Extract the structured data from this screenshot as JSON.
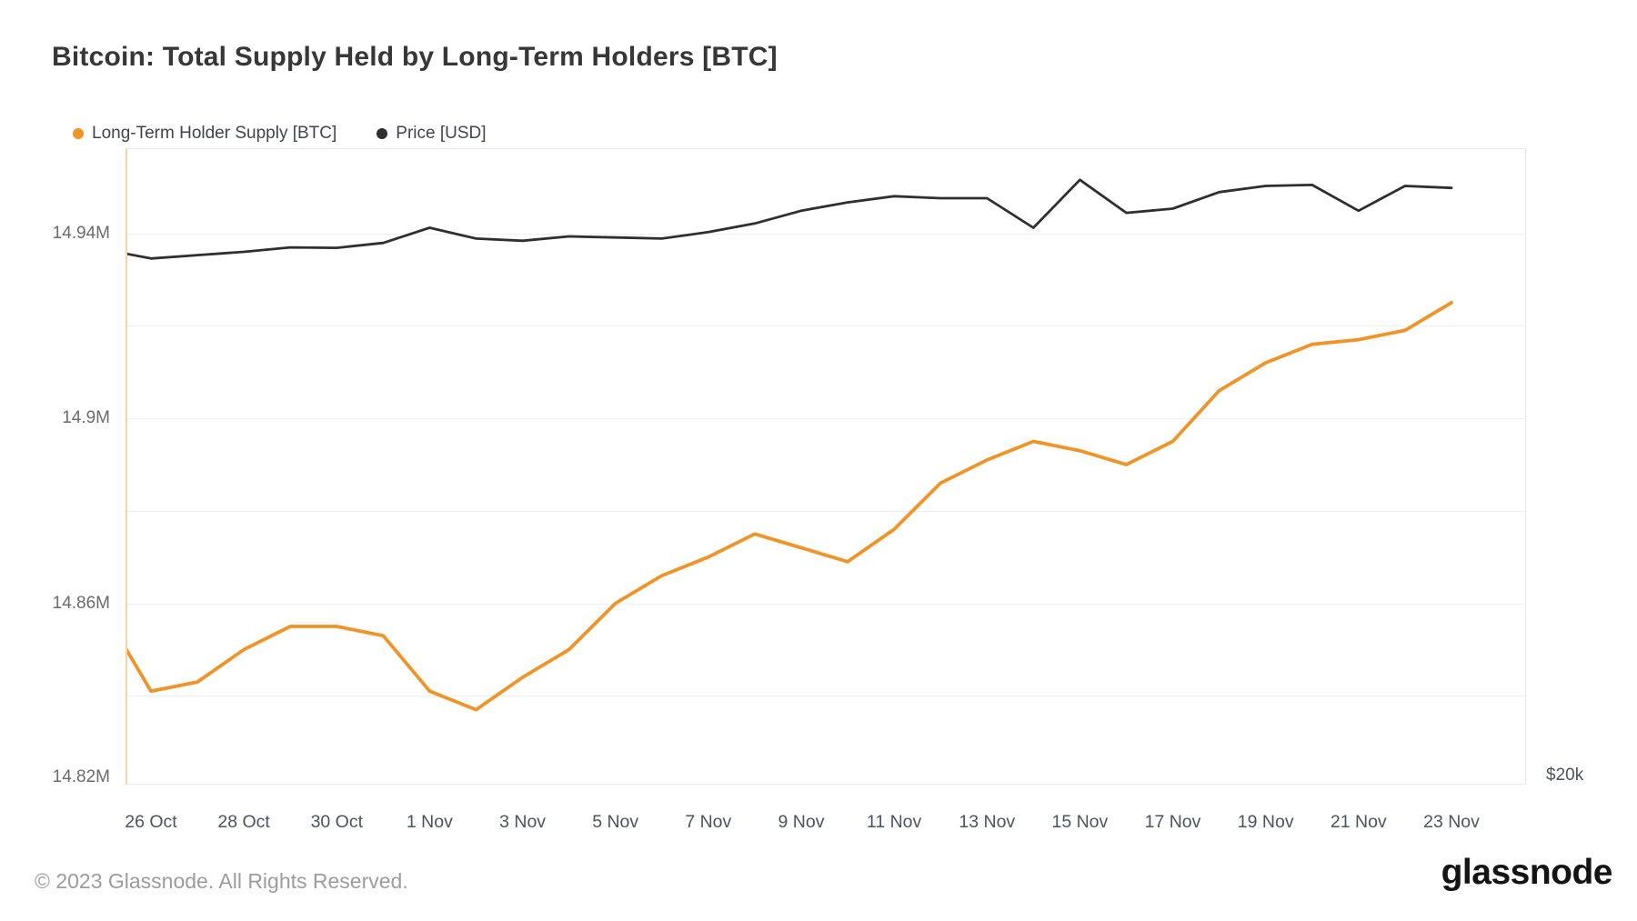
{
  "header": {
    "title": "Bitcoin: Total Supply Held by Long-Term Holders [BTC]"
  },
  "legend": {
    "items": [
      {
        "label": "Long-Term Holder Supply [BTC]",
        "color": "#f09428"
      },
      {
        "label": "Price [USD]",
        "color": "#2f2f2f"
      }
    ]
  },
  "chart_data": {
    "type": "line",
    "title": "Bitcoin: Total Supply Held by Long-Term Holders [BTC]",
    "grid": "horizontal",
    "x": [
      "25 Oct",
      "26 Oct",
      "27 Oct",
      "28 Oct",
      "29 Oct",
      "30 Oct",
      "31 Oct",
      "1 Nov",
      "2 Nov",
      "3 Nov",
      "4 Nov",
      "5 Nov",
      "6 Nov",
      "7 Nov",
      "8 Nov",
      "9 Nov",
      "10 Nov",
      "11 Nov",
      "12 Nov",
      "13 Nov",
      "14 Nov",
      "15 Nov",
      "16 Nov",
      "17 Nov",
      "18 Nov",
      "19 Nov",
      "20 Nov",
      "21 Nov",
      "22 Nov",
      "23 Nov"
    ],
    "series": [
      {
        "name": "Long-Term Holder Supply [BTC]",
        "axis": "left",
        "color": "#f09428",
        "unit": "M BTC",
        "values": [
          14.858,
          14.841,
          14.843,
          14.85,
          14.855,
          14.855,
          14.853,
          14.841,
          14.837,
          14.844,
          14.85,
          14.86,
          14.866,
          14.87,
          14.875,
          14.872,
          14.869,
          14.876,
          14.886,
          14.891,
          14.895,
          14.893,
          14.89,
          14.895,
          14.906,
          14.912,
          14.916,
          14.917,
          14.919,
          14.925
        ]
      },
      {
        "name": "Price [USD]",
        "axis": "right",
        "color": "#2f2f2f",
        "unit": "USD",
        "values": [
          34600,
          34200,
          34350,
          34500,
          34700,
          34680,
          34900,
          35600,
          35100,
          35000,
          35200,
          35150,
          35100,
          35400,
          35800,
          36400,
          36800,
          37100,
          37000,
          37000,
          35600,
          37900,
          36300,
          36500,
          37300,
          37600,
          37650,
          36400,
          37600,
          37500
        ]
      }
    ],
    "left_axis": {
      "ticks": [
        {
          "label": "14.94M",
          "value": 14.94
        },
        {
          "label": "14.9M",
          "value": 14.9
        },
        {
          "label": "14.86M",
          "value": 14.86
        },
        {
          "label": "14.82M",
          "value": 14.82
        }
      ],
      "grid_values": [
        14.94,
        14.92,
        14.9,
        14.88,
        14.86,
        14.84
      ],
      "ylim": [
        14.8208,
        14.9584
      ]
    },
    "right_axis": {
      "ticks": [
        {
          "label": "$20k",
          "value": 20000
        }
      ],
      "scale": "log",
      "ylim": [
        17200,
        39500
      ]
    },
    "x_axis": {
      "ticks": [
        "26 Oct",
        "28 Oct",
        "30 Oct",
        "1 Nov",
        "3 Nov",
        "5 Nov",
        "7 Nov",
        "9 Nov",
        "11 Nov",
        "13 Nov",
        "15 Nov",
        "17 Nov",
        "19 Nov",
        "21 Nov",
        "23 Nov"
      ]
    }
  },
  "footer": {
    "copyright": "© 2023 Glassnode. All Rights Reserved.",
    "brand": "glassnode"
  }
}
